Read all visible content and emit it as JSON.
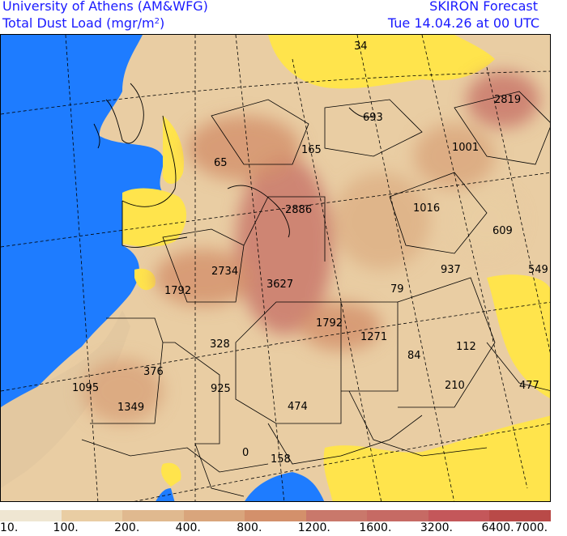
{
  "header": {
    "institution": "University of Athens (AM&WFG)",
    "product_line1": "Total Dust Load (mgr/m",
    "product_exp": "2",
    "product_line2": ")",
    "forecast": "SKIRON Forecast",
    "valid_time": "Tue 14.04.26 at 00 UTC"
  },
  "map_labels": [
    {
      "text": "34"
    },
    {
      "text": "2819"
    },
    {
      "text": "693"
    },
    {
      "text": "165"
    },
    {
      "text": "1001"
    },
    {
      "text": "65"
    },
    {
      "text": "2886"
    },
    {
      "text": "1016"
    },
    {
      "text": "609"
    },
    {
      "text": "2734"
    },
    {
      "text": "937"
    },
    {
      "text": "549"
    },
    {
      "text": "1792"
    },
    {
      "text": "3627"
    },
    {
      "text": "79"
    },
    {
      "text": "1792"
    },
    {
      "text": "1271"
    },
    {
      "text": "328"
    },
    {
      "text": "84"
    },
    {
      "text": "112"
    },
    {
      "text": "376"
    },
    {
      "text": "1095"
    },
    {
      "text": "925"
    },
    {
      "text": "210"
    },
    {
      "text": "477"
    },
    {
      "text": "1349"
    },
    {
      "text": "474"
    },
    {
      "text": "0"
    },
    {
      "text": "158"
    }
  ],
  "legend": {
    "colors": [
      "#efe6d2",
      "#e9cda3",
      "#e0b98f",
      "#d9a57c",
      "#d3906b",
      "#c9786b",
      "#c66a64",
      "#c4575a",
      "#b94a48"
    ],
    "ticks": [
      "10.",
      "100.",
      "200.",
      "400.",
      "800.",
      "1200.",
      "1600.",
      "3200.",
      "6400.",
      "7000."
    ]
  },
  "colors": {
    "sea": "#1e7cff",
    "low_dust": "#ffe44c",
    "dust_low": "#e9cda3",
    "dust_mid": "#d9a57c",
    "dust_high": "#c9786b",
    "header_text": "#1a1aff"
  }
}
